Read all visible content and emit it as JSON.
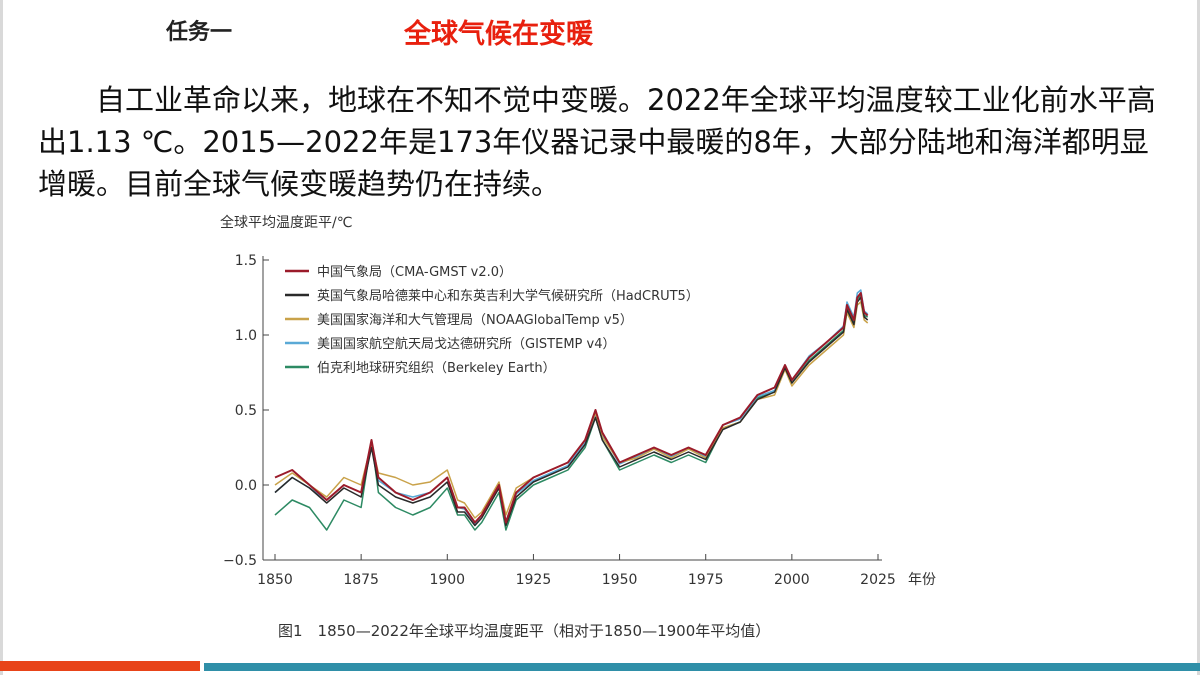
{
  "header": {
    "task_label": "任务一",
    "title": "全球气候在变暖"
  },
  "intro_text": "自工业革命以来，地球在不知不觉中变暖。2022年全球平均温度较工业化前水平高出1.13 ℃。2015—2022年是173年仪器记录中最暖的8年，大部分陆地和海洋都明显增暖。目前全球气候变暖趋势仍在持续。",
  "colors": {
    "title_red": "#e8200e",
    "bar_red": "#e84419",
    "bar_blue": "#2f8fa8"
  },
  "chart_data": {
    "type": "line",
    "title": "",
    "ylabel": "全球平均温度距平/℃",
    "xlabel": "年份",
    "caption": "图1　1850—2022年全球平均温度距平（相对于1850—1900年平均值）",
    "xlim": [
      1850,
      2025
    ],
    "ylim": [
      -0.5,
      1.5
    ],
    "xticks": [
      1850,
      1875,
      1900,
      1925,
      1950,
      1975,
      2000,
      2025
    ],
    "xtick_labels": [
      "1850",
      "1875",
      "1900",
      "1925",
      "1950",
      "1975",
      "2000",
      "2025"
    ],
    "yticks": [
      -0.5,
      0.0,
      0.5,
      1.0,
      1.5
    ],
    "ytick_labels": [
      "−0.5",
      "0.0",
      "0.5",
      "1.0",
      "1.5"
    ],
    "legend_position": "top-left",
    "grid": false,
    "x": [
      1850,
      1855,
      1860,
      1865,
      1870,
      1875,
      1878,
      1880,
      1885,
      1890,
      1895,
      1900,
      1903,
      1905,
      1908,
      1910,
      1915,
      1917,
      1920,
      1925,
      1930,
      1935,
      1940,
      1943,
      1945,
      1950,
      1955,
      1960,
      1965,
      1970,
      1975,
      1980,
      1985,
      1990,
      1995,
      1998,
      2000,
      2005,
      2010,
      2015,
      2016,
      2017,
      2018,
      2019,
      2020,
      2021,
      2022
    ],
    "series": [
      {
        "name": "中国气象局（CMA-GMST v2.0）",
        "color": "#9b1b2a",
        "values": [
          0.05,
          0.1,
          0.0,
          -0.1,
          0.0,
          -0.05,
          0.3,
          0.05,
          -0.05,
          -0.1,
          -0.05,
          0.05,
          -0.15,
          -0.15,
          -0.25,
          -0.2,
          0.0,
          -0.25,
          -0.05,
          0.05,
          0.1,
          0.15,
          0.3,
          0.5,
          0.35,
          0.15,
          0.2,
          0.25,
          0.2,
          0.25,
          0.2,
          0.4,
          0.45,
          0.6,
          0.65,
          0.8,
          0.7,
          0.85,
          0.95,
          1.05,
          1.2,
          1.15,
          1.1,
          1.25,
          1.28,
          1.15,
          1.13
        ]
      },
      {
        "name": "英国气象局哈德莱中心和东英吉利大学气候研究所（HadCRUT5）",
        "color": "#2a2a2a",
        "values": [
          -0.05,
          0.05,
          -0.02,
          -0.12,
          -0.02,
          -0.08,
          0.25,
          0.0,
          -0.08,
          -0.12,
          -0.08,
          0.02,
          -0.18,
          -0.18,
          -0.27,
          -0.22,
          -0.02,
          -0.27,
          -0.08,
          0.02,
          0.07,
          0.12,
          0.27,
          0.45,
          0.3,
          0.12,
          0.17,
          0.22,
          0.17,
          0.22,
          0.17,
          0.37,
          0.42,
          0.57,
          0.62,
          0.78,
          0.68,
          0.82,
          0.92,
          1.02,
          1.17,
          1.12,
          1.07,
          1.22,
          1.25,
          1.12,
          1.1
        ]
      },
      {
        "name": "美国国家海洋和大气管理局（NOAAGlobalTemp v5）",
        "color": "#c9a24a",
        "values": [
          0.0,
          0.08,
          0.0,
          -0.08,
          0.05,
          0.0,
          0.28,
          0.08,
          0.05,
          0.0,
          0.02,
          0.1,
          -0.1,
          -0.12,
          -0.22,
          -0.18,
          0.02,
          -0.2,
          -0.02,
          0.05,
          0.1,
          0.15,
          0.3,
          0.48,
          0.32,
          0.15,
          0.18,
          0.24,
          0.18,
          0.24,
          0.18,
          0.38,
          0.42,
          0.57,
          0.6,
          0.77,
          0.66,
          0.8,
          0.9,
          1.0,
          1.15,
          1.1,
          1.05,
          1.2,
          1.22,
          1.1,
          1.08
        ]
      },
      {
        "name": "美国国家航空航天局戈达德研究所（GISTEMP v4）",
        "color": "#5aa9d6",
        "values": [
          -0.05,
          0.05,
          -0.02,
          -0.1,
          0.0,
          -0.05,
          0.27,
          0.03,
          -0.05,
          -0.08,
          -0.05,
          0.05,
          -0.15,
          -0.16,
          -0.26,
          -0.2,
          0.0,
          -0.24,
          -0.06,
          0.03,
          0.08,
          0.13,
          0.28,
          0.47,
          0.33,
          0.14,
          0.19,
          0.24,
          0.19,
          0.24,
          0.19,
          0.4,
          0.44,
          0.59,
          0.63,
          0.8,
          0.7,
          0.86,
          0.95,
          1.06,
          1.22,
          1.17,
          1.12,
          1.28,
          1.3,
          1.16,
          1.14
        ]
      },
      {
        "name": "伯克利地球研究组织（Berkeley Earth）",
        "color": "#2d8a63",
        "values": [
          -0.2,
          -0.1,
          -0.15,
          -0.3,
          -0.1,
          -0.15,
          0.3,
          -0.05,
          -0.15,
          -0.2,
          -0.15,
          -0.02,
          -0.2,
          -0.2,
          -0.3,
          -0.25,
          -0.05,
          -0.3,
          -0.1,
          0.0,
          0.05,
          0.1,
          0.25,
          0.45,
          0.3,
          0.1,
          0.15,
          0.2,
          0.15,
          0.2,
          0.15,
          0.38,
          0.42,
          0.58,
          0.62,
          0.8,
          0.68,
          0.83,
          0.93,
          1.03,
          1.2,
          1.13,
          1.08,
          1.24,
          1.26,
          1.13,
          1.12
        ]
      }
    ]
  }
}
